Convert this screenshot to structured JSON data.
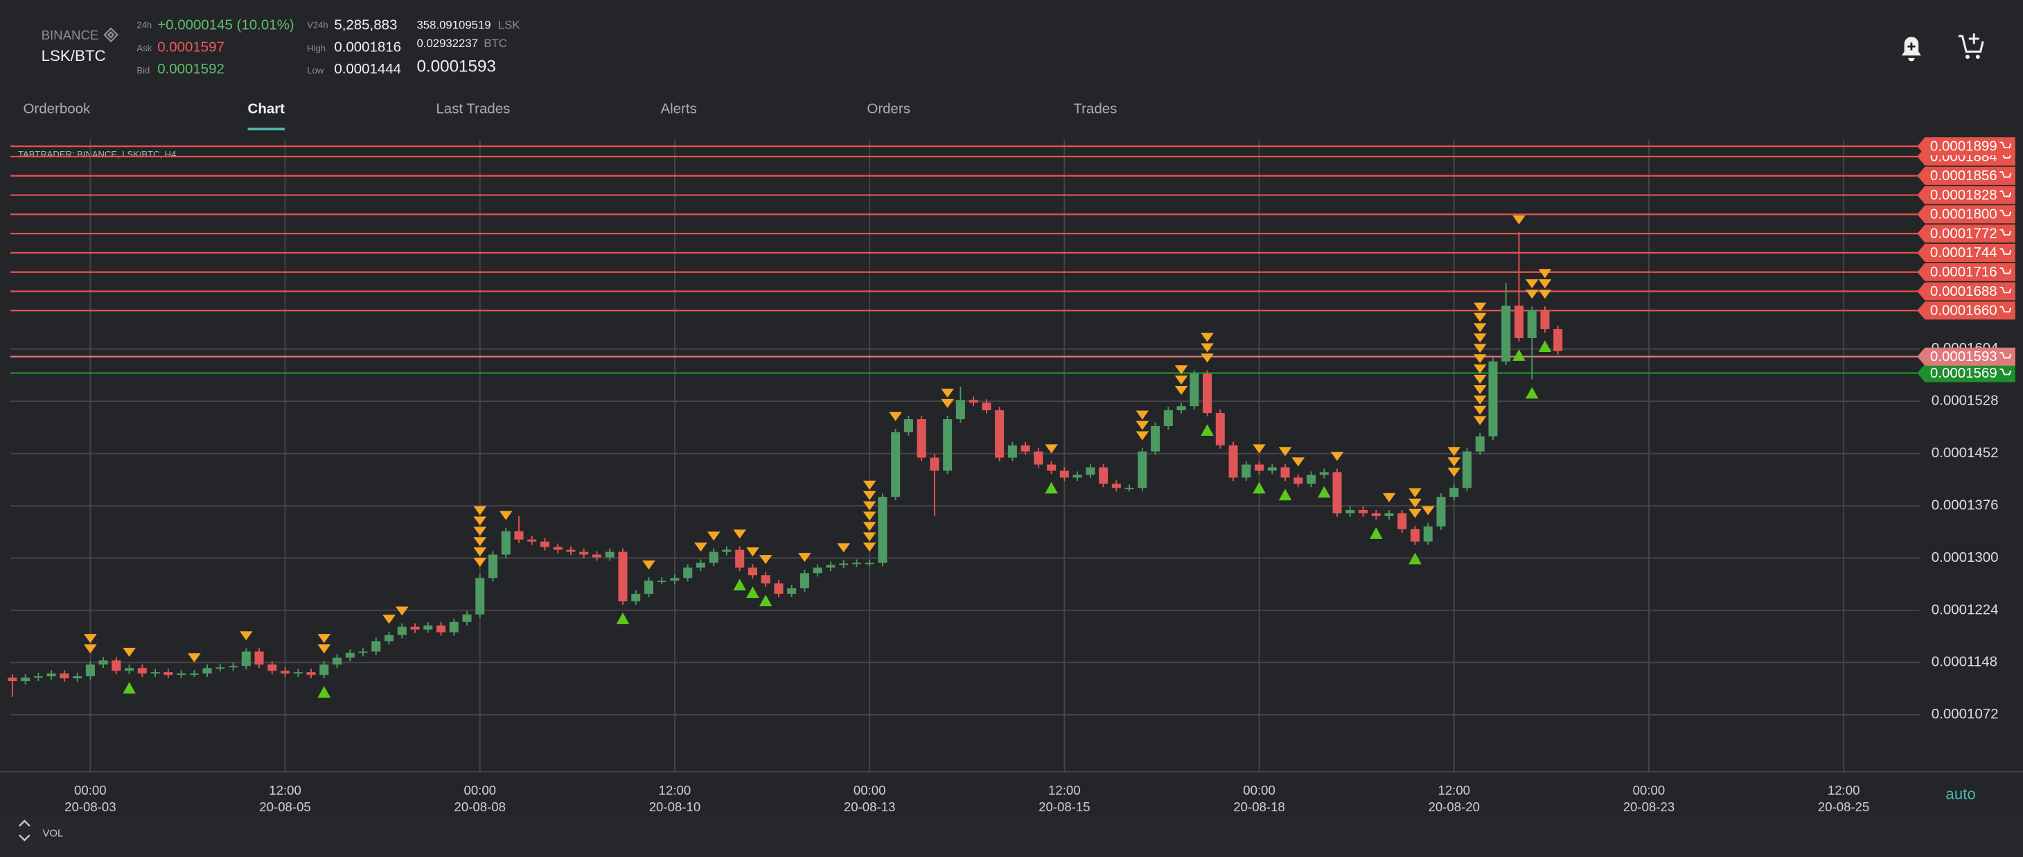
{
  "header": {
    "exchange": "BINANCE",
    "pair": "LSK/BTC",
    "change_label": "24h",
    "change": "+0.0000145 (10.01%)",
    "ask_label": "Ask",
    "ask": "0.0001597",
    "bid_label": "Bid",
    "bid": "0.0001592",
    "volume_label": "V24h",
    "volume": "5,285,883",
    "high_label": "High",
    "high": "0.0001816",
    "low_label": "Low",
    "low": "0.0001444",
    "base_volume": "358.09109519",
    "base": "LSK",
    "quote_volume": "0.02932237",
    "quote": "BTC",
    "last": "0.0001593"
  },
  "tabs": [
    {
      "label": "Orderbook"
    },
    {
      "label": "Chart",
      "active": true
    },
    {
      "label": "Last Trades"
    },
    {
      "label": "Alerts"
    },
    {
      "label": "Orders"
    },
    {
      "label": "Trades"
    }
  ],
  "chart_data": {
    "type": "candlestick",
    "title": "TABTRADER: BINANCE, LSK/BTC, H4",
    "up_color": "#4e9a63",
    "down_color": "#e05656",
    "open": [
      0.0001126,
      0.0001121,
      0.0001126,
      0.0001128,
      0.0001132,
      0.0001125,
      0.0001128,
      0.0001145,
      0.0001151,
      0.0001136,
      0.000114,
      0.0001132,
      0.0001134,
      0.000113,
      0.0001132,
      0.0001132,
      0.000114,
      0.0001141,
      0.0001143,
      0.0001164,
      0.0001145,
      0.0001136,
      0.0001132,
      0.0001134,
      0.000113,
      0.0001145,
      0.0001155,
      0.0001162,
      0.0001164,
      0.0001179,
      0.0001188,
      0.00012,
      0.0001196,
      0.0001202,
      0.0001192,
      0.0001207,
      0.0001218,
      0.0001271,
      0.0001305,
      0.0001339,
      0.0001327,
      0.0001324,
      0.0001316,
      0.0001312,
      0.0001309,
      0.0001305,
      0.0001301,
      0.0001309,
      0.0001237,
      0.0001248,
      0.0001267,
      0.0001267,
      0.0001271,
      0.0001286,
      0.0001293,
      0.0001309,
      0.0001312,
      0.0001286,
      0.0001275,
      0.0001263,
      0.0001248,
      0.0001256,
      0.0001278,
      0.0001286,
      0.000129,
      0.0001292,
      0.0001293,
      0.0001293,
      0.0001389,
      0.0001483,
      0.0001502,
      0.0001446,
      0.0001427,
      0.0001502,
      0.000153,
      0.0001526,
      0.0001515,
      0.0001446,
      0.0001464,
      0.0001455,
      0.0001436,
      0.0001427,
      0.0001417,
      0.0001421,
      0.0001432,
      0.0001408,
      0.0001402,
      0.0001402,
      0.0001455,
      0.0001492,
      0.0001515,
      0.0001521,
      0.0001568,
      0.0001511,
      0.0001464,
      0.0001417,
      0.0001436,
      0.0001427,
      0.0001432,
      0.0001417,
      0.0001408,
      0.0001421,
      0.0001425,
      0.0001365,
      0.000137,
      0.0001365,
      0.0001361,
      0.0001365,
      0.0001342,
      0.0001324,
      0.0001346,
      0.0001389,
      0.0001402,
      0.0001455,
      0.0001477,
      0.0001586,
      0.0001667,
      0.000162,
      0.0001661,
      0.0001633
    ],
    "high": [
      0.0001131,
      0.0001131,
      0.0001133,
      0.0001137,
      0.0001137,
      0.0001133,
      0.000115,
      0.0001156,
      0.0001156,
      0.0001145,
      0.0001145,
      0.0001139,
      0.0001139,
      0.0001137,
      0.0001137,
      0.0001145,
      0.0001146,
      0.0001148,
      0.0001169,
      0.0001169,
      0.000115,
      0.0001141,
      0.0001139,
      0.0001139,
      0.000115,
      0.000116,
      0.0001167,
      0.0001169,
      0.0001184,
      0.0001193,
      0.0001205,
      0.0001205,
      0.0001207,
      0.0001207,
      0.0001212,
      0.0001223,
      0.0001276,
      0.000131,
      0.0001344,
      0.0001361,
      0.0001332,
      0.0001329,
      0.0001321,
      0.0001317,
      0.0001314,
      0.000131,
      0.0001314,
      0.0001314,
      0.0001253,
      0.0001272,
      0.0001272,
      0.0001276,
      0.0001291,
      0.0001298,
      0.0001314,
      0.0001317,
      0.0001317,
      0.0001291,
      0.000128,
      0.0001268,
      0.0001261,
      0.0001283,
      0.0001291,
      0.0001295,
      0.0001297,
      0.0001298,
      0.0001298,
      0.0001394,
      0.0001488,
      0.0001507,
      0.0001507,
      0.0001451,
      0.0001507,
      0.0001549,
      0.0001535,
      0.0001531,
      0.000152,
      0.0001469,
      0.0001469,
      0.000146,
      0.0001441,
      0.0001432,
      0.0001426,
      0.0001437,
      0.0001437,
      0.0001413,
      0.0001407,
      0.000146,
      0.0001497,
      0.000152,
      0.0001526,
      0.0001573,
      0.0001573,
      0.0001516,
      0.0001469,
      0.0001441,
      0.0001441,
      0.0001437,
      0.0001437,
      0.0001422,
      0.0001426,
      0.000143,
      0.000143,
      0.0001375,
      0.0001375,
      0.000137,
      0.000137,
      0.000137,
      0.0001347,
      0.0001351,
      0.0001394,
      0.0001407,
      0.000146,
      0.0001482,
      0.0001591,
      0.00017,
      0.0001774,
      0.0001666,
      0.0001666,
      0.0001638
    ],
    "low": [
      0.0001098,
      0.0001116,
      0.0001121,
      0.0001123,
      0.000112,
      0.000112,
      0.0001123,
      0.000114,
      0.0001131,
      0.0001131,
      0.0001127,
      0.0001127,
      0.0001125,
      0.0001125,
      0.0001127,
      0.0001127,
      0.0001135,
      0.0001136,
      0.0001138,
      0.000114,
      0.0001131,
      0.0001127,
      0.0001127,
      0.0001125,
      0.0001125,
      0.000114,
      0.000115,
      0.0001157,
      0.0001159,
      0.0001174,
      0.0001183,
      0.0001191,
      0.0001191,
      0.0001187,
      0.0001187,
      0.0001202,
      0.0001213,
      0.0001266,
      0.00013,
      0.0001322,
      0.0001319,
      0.0001311,
      0.0001307,
      0.0001304,
      0.00013,
      0.0001296,
      0.0001296,
      0.0001232,
      0.0001232,
      0.0001243,
      0.0001262,
      0.0001262,
      0.0001266,
      0.0001281,
      0.0001288,
      0.0001304,
      0.0001281,
      0.000127,
      0.0001258,
      0.0001243,
      0.0001243,
      0.0001251,
      0.0001273,
      0.0001281,
      0.0001285,
      0.0001287,
      0.0001288,
      0.0001288,
      0.0001384,
      0.0001478,
      0.0001441,
      0.0001361,
      0.0001422,
      0.0001497,
      0.0001521,
      0.000151,
      0.0001441,
      0.0001441,
      0.000145,
      0.0001431,
      0.0001422,
      0.0001412,
      0.0001412,
      0.0001416,
      0.0001403,
      0.0001397,
      0.0001397,
      0.0001397,
      0.000145,
      0.0001487,
      0.000151,
      0.0001516,
      0.0001506,
      0.0001459,
      0.0001412,
      0.0001412,
      0.0001422,
      0.0001422,
      0.0001412,
      0.0001403,
      0.0001403,
      0.0001416,
      0.000136,
      0.000136,
      0.000136,
      0.0001356,
      0.0001356,
      0.0001337,
      0.0001319,
      0.0001319,
      0.0001341,
      0.0001384,
      0.0001397,
      0.000145,
      0.0001472,
      0.0001581,
      0.0001615,
      0.000156,
      0.0001628,
      0.0001596
    ],
    "close": [
      0.0001121,
      0.0001126,
      0.0001128,
      0.0001132,
      0.0001125,
      0.0001128,
      0.0001145,
      0.0001151,
      0.0001136,
      0.000114,
      0.0001132,
      0.0001134,
      0.000113,
      0.0001132,
      0.0001132,
      0.000114,
      0.0001141,
      0.0001143,
      0.0001164,
      0.0001145,
      0.0001136,
      0.0001132,
      0.0001134,
      0.000113,
      0.0001145,
      0.0001155,
      0.0001162,
      0.0001164,
      0.0001179,
      0.0001188,
      0.00012,
      0.0001196,
      0.0001202,
      0.0001192,
      0.0001207,
      0.0001218,
      0.0001271,
      0.0001305,
      0.0001339,
      0.0001327,
      0.0001324,
      0.0001316,
      0.0001312,
      0.0001309,
      0.0001305,
      0.0001301,
      0.0001309,
      0.0001237,
      0.0001248,
      0.0001267,
      0.0001267,
      0.0001271,
      0.0001286,
      0.0001293,
      0.0001309,
      0.0001312,
      0.0001286,
      0.0001275,
      0.0001263,
      0.0001248,
      0.0001256,
      0.0001278,
      0.0001286,
      0.000129,
      0.0001292,
      0.0001293,
      0.0001293,
      0.0001389,
      0.0001483,
      0.0001502,
      0.0001446,
      0.0001427,
      0.0001502,
      0.000153,
      0.0001526,
      0.0001515,
      0.0001446,
      0.0001464,
      0.0001455,
      0.0001436,
      0.0001427,
      0.0001417,
      0.0001421,
      0.0001432,
      0.0001408,
      0.0001402,
      0.0001402,
      0.0001455,
      0.0001492,
      0.0001515,
      0.0001521,
      0.0001568,
      0.0001511,
      0.0001464,
      0.0001417,
      0.0001436,
      0.0001427,
      0.0001432,
      0.0001417,
      0.0001408,
      0.0001421,
      0.0001425,
      0.0001365,
      0.000137,
      0.0001365,
      0.0001361,
      0.0001365,
      0.0001342,
      0.0001324,
      0.0001346,
      0.0001389,
      0.0001402,
      0.0001455,
      0.0001477,
      0.0001586,
      0.0001667,
      0.000162,
      0.0001661,
      0.0001633,
      0.0001601
    ],
    "ylim": [
      9.89e-05,
      0.0001909
    ],
    "yticks": [
      0.0001072,
      0.0001148,
      0.0001224,
      {
        "value": 0.00013,
        "label": "0.0001300"
      },
      0.0001376,
      0.0001452,
      0.0001528,
      0.0001604
    ],
    "xticks": [
      {
        "time": "00:00",
        "date": "20-08-03"
      },
      {
        "time": "12:00",
        "date": "20-08-05"
      },
      {
        "time": "00:00",
        "date": "20-08-08"
      },
      {
        "time": "12:00",
        "date": "20-08-10"
      },
      {
        "time": "00:00",
        "date": "20-08-13"
      },
      {
        "time": "12:00",
        "date": "20-08-15"
      },
      {
        "time": "00:00",
        "date": "20-08-18"
      },
      {
        "time": "12:00",
        "date": "20-08-20"
      },
      {
        "time": "00:00",
        "date": "20-08-23"
      },
      {
        "time": "12:00",
        "date": "20-08-25"
      }
    ],
    "grid": true,
    "price_lines": [
      {
        "value": 0.0001899,
        "label": "0.0001899",
        "color": "#e5534b"
      },
      {
        "value": 0.0001884,
        "label": "0.0001884",
        "color": "#e5534b"
      },
      {
        "value": 0.0001856,
        "label": "0.0001856",
        "color": "#e5534b"
      },
      {
        "value": 0.0001828,
        "label": "0.0001828",
        "color": "#e5534b"
      },
      {
        "value": 0.00018,
        "label": "0.0001800",
        "color": "#e5534b"
      },
      {
        "value": 0.0001772,
        "label": "0.0001772",
        "color": "#e5534b"
      },
      {
        "value": 0.0001744,
        "label": "0.0001744",
        "color": "#e5534b"
      },
      {
        "value": 0.0001716,
        "label": "0.0001716",
        "color": "#e5534b"
      },
      {
        "value": 0.0001688,
        "label": "0.0001688",
        "color": "#e5534b"
      },
      {
        "value": 0.000166,
        "label": "0.0001660",
        "color": "#e5534b"
      },
      {
        "value": 0.0001593,
        "label": "0.0001593",
        "color": "#e07a7a"
      },
      {
        "value": 0.0001569,
        "label": "0.0001569",
        "color": "#1f8f2e"
      }
    ],
    "scale_mode": "auto",
    "volume_label": "VOL"
  }
}
